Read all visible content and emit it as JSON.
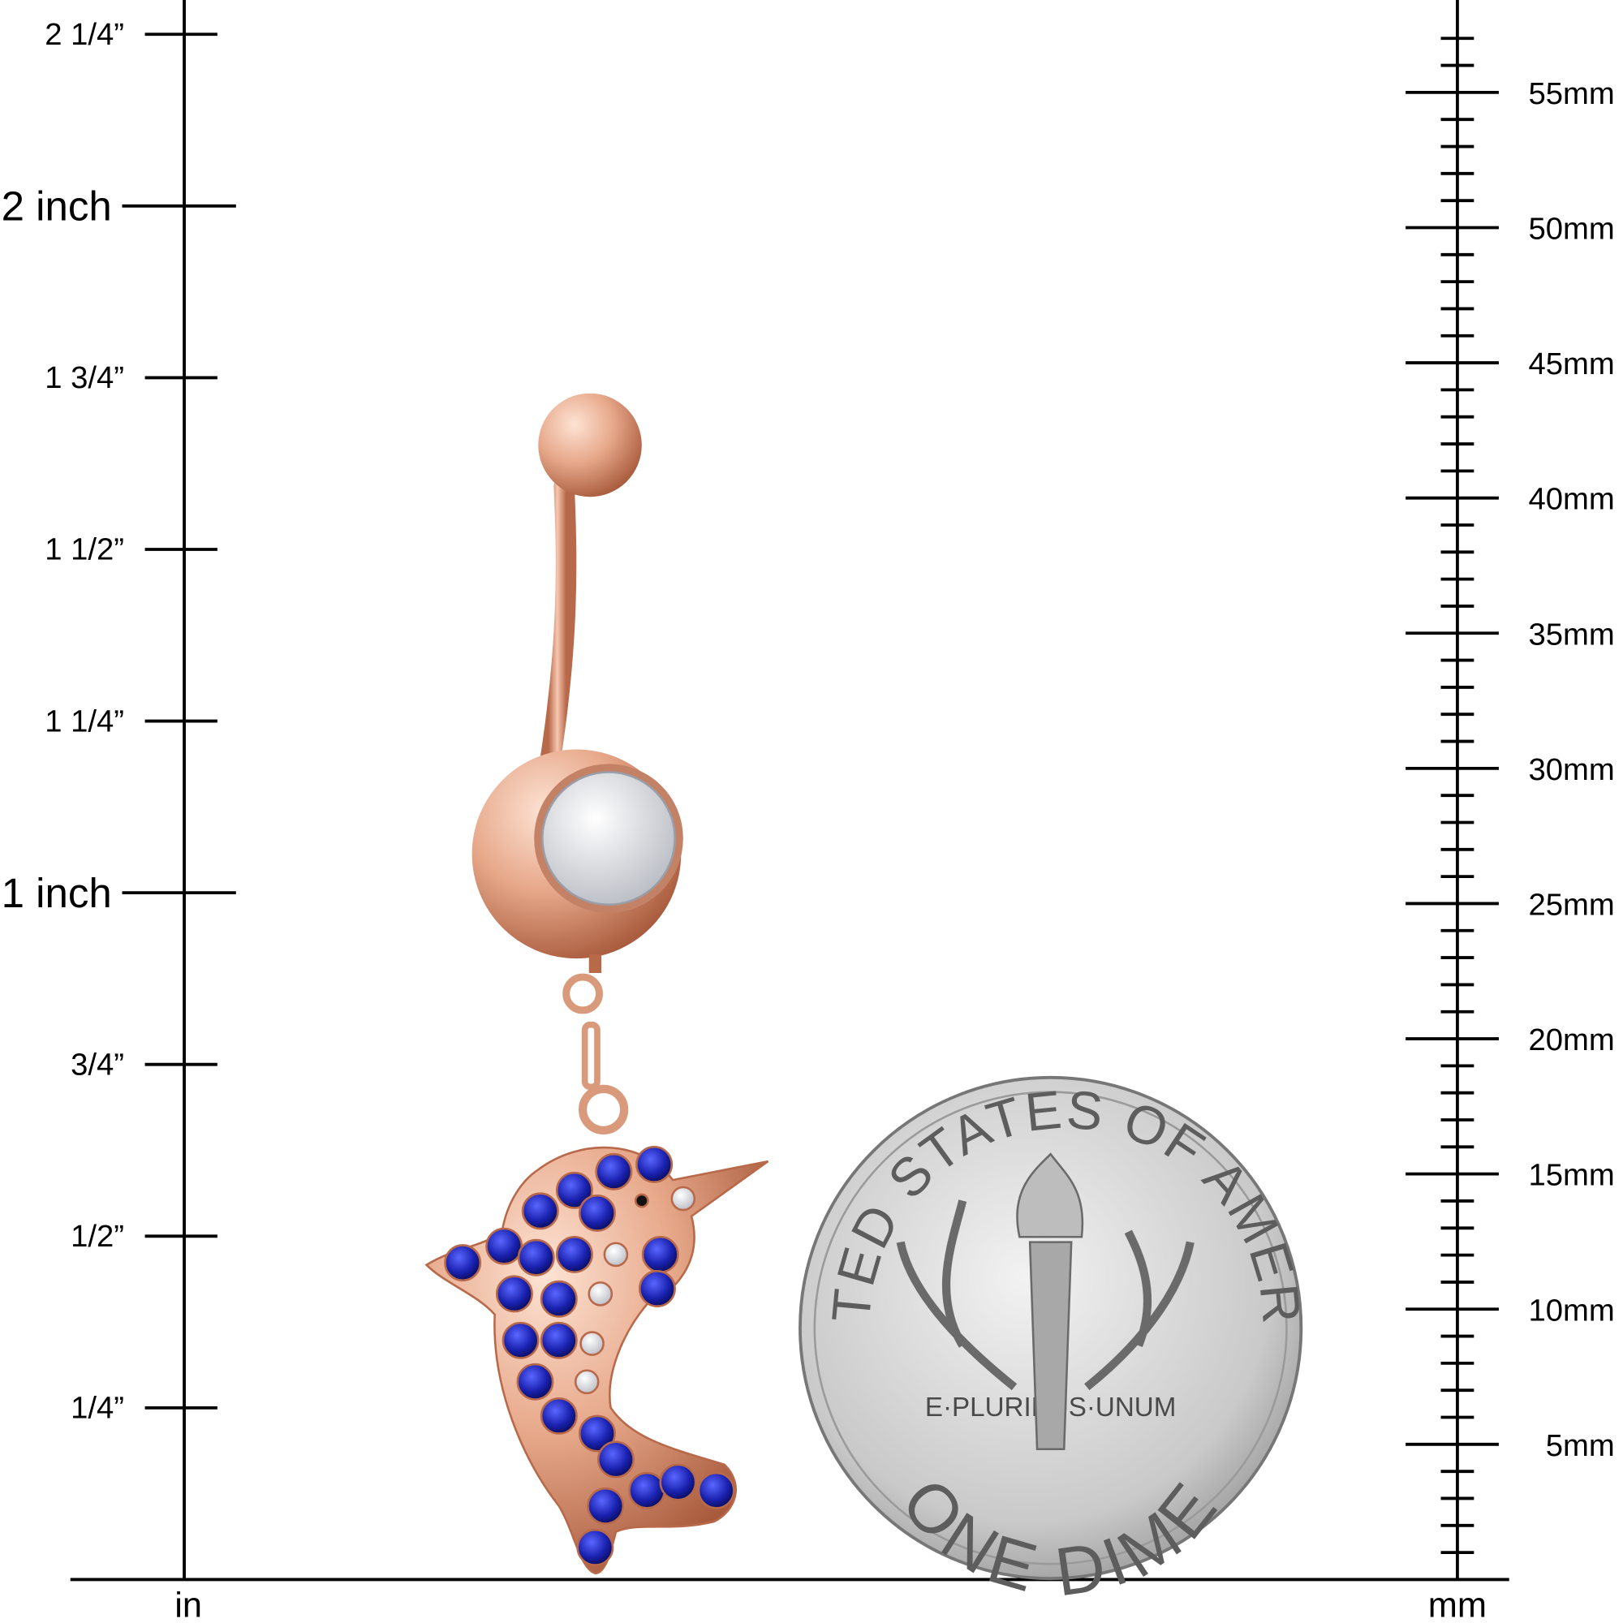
{
  "inch_scale": {
    "unit_label": "in",
    "ticks": [
      {
        "value": 2.25,
        "label": "2 1/4”",
        "major": false
      },
      {
        "value": 2.0,
        "label": "2 inch",
        "major": true
      },
      {
        "value": 1.75,
        "label": "1 3/4”",
        "major": false
      },
      {
        "value": 1.5,
        "label": "1 1/2”",
        "major": false
      },
      {
        "value": 1.25,
        "label": "1 1/4”",
        "major": false
      },
      {
        "value": 1.0,
        "label": "1 inch",
        "major": true
      },
      {
        "value": 0.75,
        "label": "3/4”",
        "major": false
      },
      {
        "value": 0.5,
        "label": "1/2”",
        "major": false
      },
      {
        "value": 0.25,
        "label": "1/4”",
        "major": false
      }
    ]
  },
  "mm_scale": {
    "unit_label": "mm",
    "max_mm": 57,
    "labels": [
      "55mm",
      "50mm",
      "45mm",
      "40mm",
      "35mm",
      "30mm",
      "25mm",
      "20mm",
      "15mm",
      "10mm",
      "5mm"
    ],
    "label_values": [
      55,
      50,
      45,
      40,
      35,
      30,
      25,
      20,
      15,
      10,
      5
    ]
  },
  "coin": {
    "top_text": "UNITED STATES OF AMERICA",
    "motto": "E·PLURIBUS·UNUM",
    "bottom_text": "ONE DIME"
  },
  "colors": {
    "rose_gold": "#e7a88a",
    "rose_gold_dark": "#b8694a",
    "sapphire": "#1a22b0",
    "coin_silver": "#c9c9c9"
  }
}
